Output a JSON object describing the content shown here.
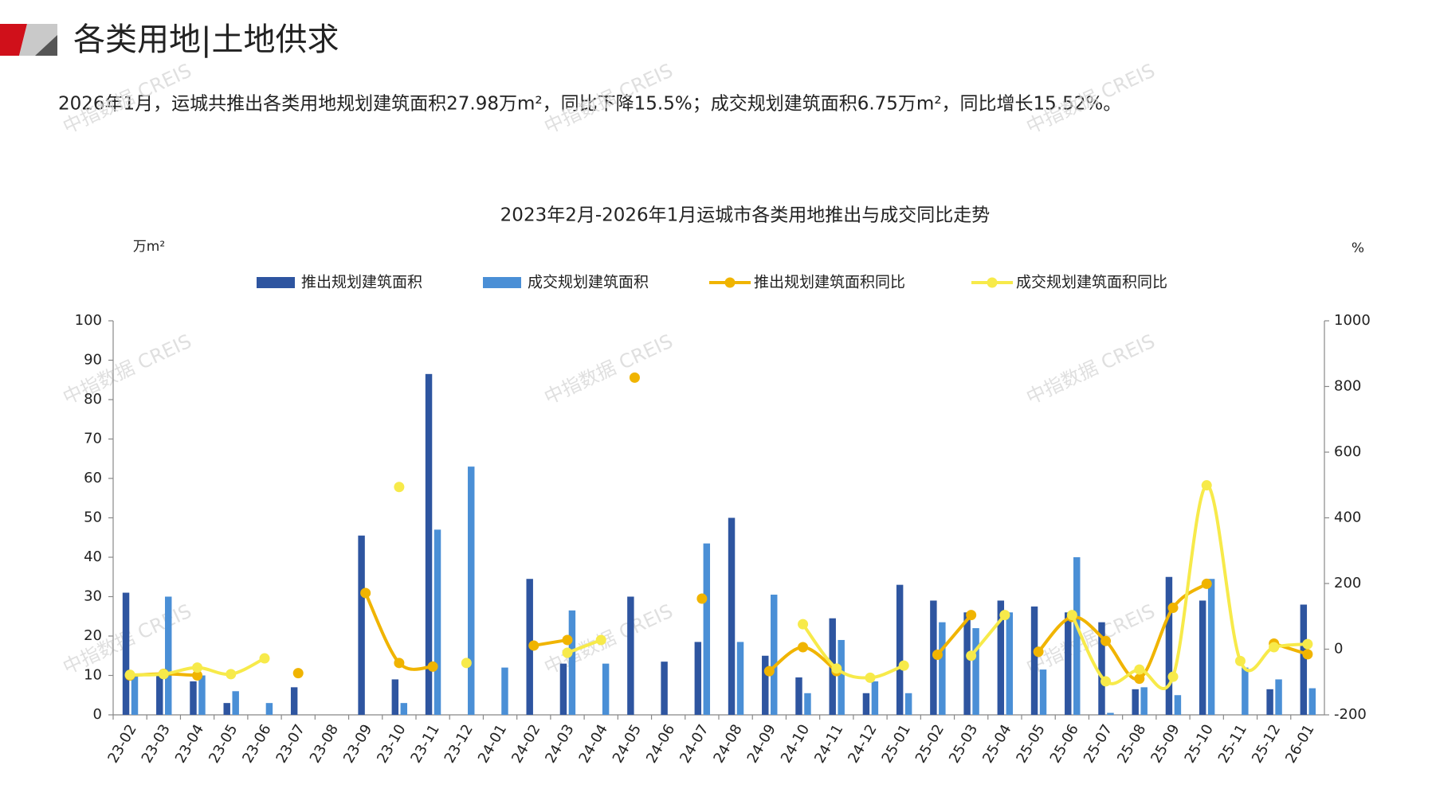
{
  "header": {
    "title": "各类用地|土地供求",
    "summary": "2026年1月，运城共推出各类用地规划建筑面积27.98万m²，同比下降15.5%；成交规划建筑面积6.75万m²，同比增长15.52%。"
  },
  "watermark": "中指数据 CREIS",
  "chart_data": {
    "type": "bar",
    "title": "2023年2月-2026年1月运城市各类用地推出与成交同比走势",
    "y_label": "万m²",
    "y2_label": "%",
    "categories": [
      "23-02",
      "23-03",
      "23-04",
      "23-05",
      "23-06",
      "23-07",
      "23-08",
      "23-09",
      "23-10",
      "23-11",
      "23-12",
      "24-01",
      "24-02",
      "24-03",
      "24-04",
      "24-05",
      "24-06",
      "24-07",
      "24-08",
      "24-09",
      "24-10",
      "24-11",
      "24-12",
      "25-01",
      "25-02",
      "25-03",
      "25-04",
      "25-05",
      "25-06",
      "25-07",
      "25-08",
      "25-09",
      "25-10",
      "25-11",
      "25-12",
      "26-01"
    ],
    "series": [
      {
        "name": "推出规划建筑面积",
        "type": "bar",
        "color": "#2e55a0",
        "values": [
          31,
          10,
          8.5,
          3,
          null,
          7,
          null,
          45.5,
          9,
          86.5,
          null,
          null,
          34.5,
          13,
          null,
          30,
          13.5,
          18.5,
          50,
          15,
          9.5,
          24.5,
          5.5,
          33,
          29,
          26,
          29,
          27.5,
          26,
          23.5,
          6.5,
          35,
          29,
          null,
          6.5,
          27.98
        ]
      },
      {
        "name": "成交规划建筑面积",
        "type": "bar",
        "color": "#4a8fd6",
        "values": [
          10,
          30,
          10,
          6,
          3,
          null,
          null,
          null,
          3,
          47,
          63,
          12,
          null,
          26.5,
          13,
          null,
          null,
          43.5,
          18.5,
          30.5,
          5.5,
          19,
          8.5,
          5.5,
          23.5,
          22,
          26,
          11.5,
          40,
          0.5,
          7,
          5,
          34.5,
          12,
          9,
          6.75
        ]
      },
      {
        "name": "推出规划建筑面积同比",
        "type": "line",
        "axis": "y2",
        "color": "#f0b400",
        "values": [
          -80,
          -75,
          -80,
          null,
          null,
          -73,
          null,
          171,
          -42,
          -53,
          null,
          null,
          11,
          28,
          null,
          827,
          null,
          154,
          null,
          -67,
          6,
          -67,
          null,
          null,
          -17,
          104,
          null,
          -8,
          98,
          25,
          -90,
          126,
          199,
          null,
          17,
          -15.5
        ]
      },
      {
        "name": "成交规划建筑面积同比",
        "type": "line",
        "axis": "y2",
        "color": "#f7ea4a",
        "values": [
          -78,
          -76,
          -56,
          -76,
          -28,
          null,
          null,
          null,
          494,
          null,
          -42,
          null,
          null,
          -11,
          28,
          null,
          null,
          null,
          null,
          null,
          76,
          -59,
          -87,
          -50,
          null,
          -20,
          104,
          null,
          104,
          -98,
          -62,
          -84,
          499,
          -36,
          6,
          15.52
        ]
      }
    ],
    "ylim": [
      0,
      100
    ],
    "yticks": [
      0,
      10,
      20,
      30,
      40,
      50,
      60,
      70,
      80,
      90,
      100
    ],
    "y2lim": [
      -200,
      1000
    ],
    "y2ticks": [
      -200,
      0,
      200,
      400,
      600,
      800,
      1000
    ],
    "legend": "top",
    "grid": false
  }
}
